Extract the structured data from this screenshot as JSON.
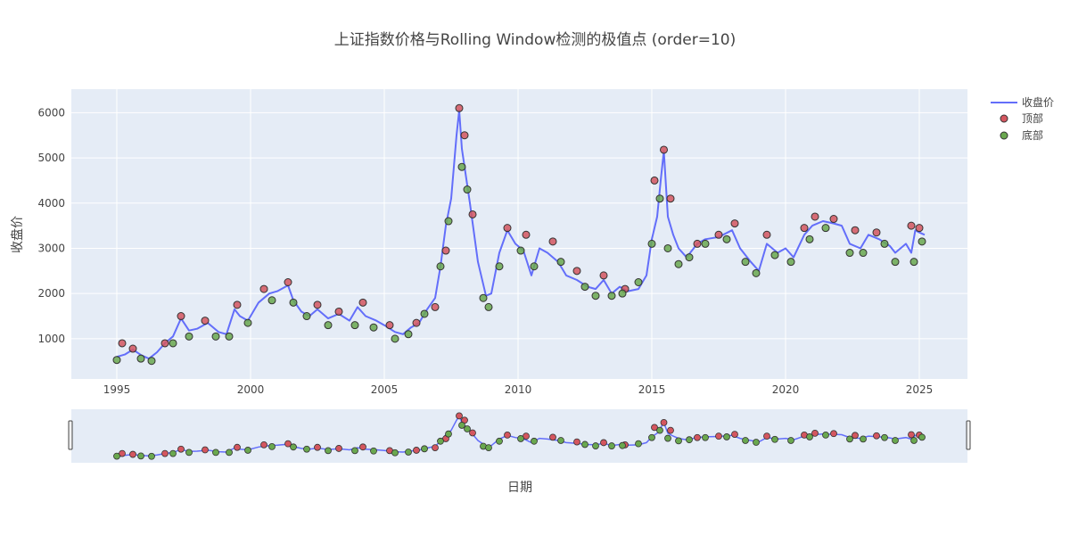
{
  "chart_data": {
    "type": "line",
    "title": "上证指数价格与Rolling Window检测的极值点 (order=10)",
    "xlabel": "日期",
    "ylabel": "收盘价",
    "xlim": [
      1993.3,
      2026.8
    ],
    "ylim": [
      110,
      6520
    ],
    "x_ticks": [
      1995,
      2000,
      2005,
      2010,
      2015,
      2020,
      2025
    ],
    "y_ticks": [
      1000,
      2000,
      3000,
      4000,
      5000,
      6000
    ],
    "grid": true,
    "legend_position": "top-right",
    "legend": [
      "收盘价",
      "顶部",
      "底部"
    ],
    "range_slider": true,
    "colors": {
      "line": "#636efa",
      "peak": "#d4565f",
      "trough": "#6aa84f",
      "plot_bg": "#e5ecf6",
      "grid": "#ffffff"
    },
    "series": [
      {
        "name": "收盘价",
        "kind": "line",
        "x": [
          1995.0,
          1995.3,
          1995.6,
          1995.9,
          1996.2,
          1996.5,
          1996.8,
          1997.1,
          1997.4,
          1997.7,
          1998.0,
          1998.4,
          1998.8,
          1999.1,
          1999.4,
          1999.6,
          1999.9,
          2000.3,
          2000.7,
          2001.0,
          2001.4,
          2001.6,
          2001.9,
          2002.2,
          2002.5,
          2002.9,
          2003.3,
          2003.7,
          2004.0,
          2004.3,
          2004.7,
          2005.0,
          2005.4,
          2005.7,
          2006.0,
          2006.3,
          2006.6,
          2006.9,
          2007.1,
          2007.3,
          2007.5,
          2007.7,
          2007.8,
          2007.9,
          2008.0,
          2008.2,
          2008.5,
          2008.8,
          2009.0,
          2009.3,
          2009.6,
          2009.9,
          2010.2,
          2010.5,
          2010.8,
          2011.1,
          2011.5,
          2011.8,
          2012.2,
          2012.6,
          2012.9,
          2013.2,
          2013.5,
          2013.8,
          2014.1,
          2014.5,
          2014.8,
          2015.0,
          2015.2,
          2015.35,
          2015.45,
          2015.6,
          2015.8,
          2016.0,
          2016.3,
          2016.7,
          2017.0,
          2017.5,
          2018.0,
          2018.3,
          2018.7,
          2019.0,
          2019.3,
          2019.7,
          2020.0,
          2020.3,
          2020.7,
          2021.0,
          2021.4,
          2021.8,
          2022.1,
          2022.4,
          2022.8,
          2023.1,
          2023.5,
          2023.9,
          2024.1,
          2024.5,
          2024.7,
          2024.85,
          2025.0,
          2025.2
        ],
        "y": [
          600,
          650,
          760,
          640,
          560,
          700,
          900,
          1050,
          1450,
          1180,
          1220,
          1350,
          1150,
          1100,
          1650,
          1500,
          1400,
          1800,
          2000,
          2050,
          2180,
          1850,
          1600,
          1500,
          1650,
          1450,
          1550,
          1400,
          1700,
          1500,
          1400,
          1300,
          1150,
          1100,
          1250,
          1350,
          1650,
          1900,
          2600,
          3500,
          4100,
          5500,
          6050,
          5200,
          4800,
          4000,
          2700,
          1950,
          2000,
          2900,
          3400,
          3100,
          2950,
          2400,
          3000,
          2900,
          2700,
          2400,
          2300,
          2150,
          2100,
          2300,
          2000,
          2150,
          2050,
          2100,
          2400,
          3200,
          3700,
          4600,
          5150,
          3700,
          3300,
          3000,
          2800,
          3100,
          3200,
          3250,
          3400,
          3000,
          2700,
          2500,
          3100,
          2900,
          3000,
          2800,
          3300,
          3500,
          3600,
          3550,
          3500,
          3100,
          3000,
          3300,
          3200,
          3050,
          2900,
          3100,
          2900,
          3400,
          3350,
          3300
        ]
      },
      {
        "name": "顶部",
        "kind": "markers",
        "x": [
          1995.2,
          1995.6,
          1996.8,
          1997.4,
          1998.3,
          1999.5,
          2000.5,
          2001.4,
          2002.5,
          2003.3,
          2004.2,
          2005.2,
          2006.2,
          2006.9,
          2007.3,
          2007.8,
          2008.0,
          2008.3,
          2009.6,
          2010.3,
          2011.3,
          2012.2,
          2013.2,
          2014.0,
          2015.1,
          2015.45,
          2015.7,
          2016.7,
          2017.5,
          2018.1,
          2019.3,
          2020.7,
          2021.1,
          2021.8,
          2022.6,
          2023.4,
          2024.7,
          2025.0
        ],
        "y": [
          900,
          780,
          900,
          1500,
          1400,
          1750,
          2100,
          2250,
          1750,
          1600,
          1800,
          1300,
          1350,
          1700,
          2950,
          6100,
          5500,
          3750,
          3450,
          3300,
          3150,
          2500,
          2400,
          2100,
          4500,
          5180,
          4100,
          3100,
          3300,
          3550,
          3300,
          3450,
          3700,
          3650,
          3400,
          3350,
          3500,
          3450
        ]
      },
      {
        "name": "底部",
        "kind": "markers",
        "x": [
          1995.0,
          1995.9,
          1996.3,
          1997.1,
          1997.7,
          1998.7,
          1999.2,
          1999.9,
          2000.8,
          2001.6,
          2002.1,
          2002.9,
          2003.9,
          2004.6,
          2005.4,
          2005.9,
          2006.5,
          2007.1,
          2007.4,
          2007.9,
          2008.1,
          2008.7,
          2008.9,
          2009.3,
          2010.1,
          2010.6,
          2011.6,
          2012.5,
          2012.9,
          2013.5,
          2013.9,
          2014.5,
          2015.0,
          2015.3,
          2015.6,
          2016.0,
          2016.4,
          2017.0,
          2017.8,
          2018.5,
          2018.9,
          2019.6,
          2020.2,
          2020.9,
          2021.5,
          2022.4,
          2022.9,
          2023.7,
          2024.1,
          2024.8,
          2025.1
        ],
        "y": [
          530,
          560,
          510,
          900,
          1050,
          1050,
          1050,
          1350,
          1850,
          1800,
          1500,
          1300,
          1300,
          1250,
          1000,
          1100,
          1550,
          2600,
          3600,
          4800,
          4300,
          1900,
          1700,
          2600,
          2950,
          2600,
          2700,
          2150,
          1950,
          1950,
          2000,
          2250,
          3100,
          4100,
          3000,
          2650,
          2800,
          3100,
          3200,
          2700,
          2450,
          2850,
          2700,
          3200,
          3450,
          2900,
          2900,
          3100,
          2700,
          2700,
          3150
        ]
      }
    ]
  }
}
